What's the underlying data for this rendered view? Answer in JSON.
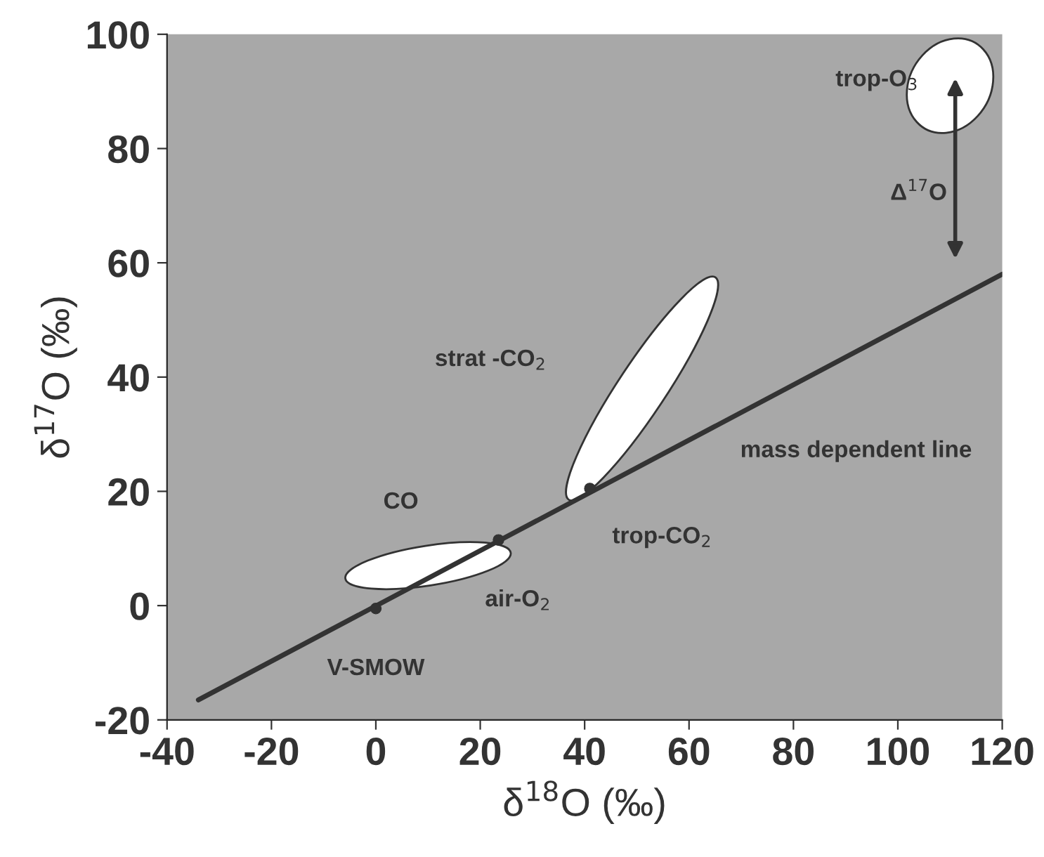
{
  "chart_data": {
    "type": "scatter",
    "xlabel": "δ$^{18}$O (‰)",
    "ylabel": "δ$^{17}$O (‰)",
    "series": [
      {
        "type": "line",
        "color": "#333333",
        "x": [
          -34,
          120
        ],
        "values": [
          -16.5,
          58
        ],
        "marker": "none"
      },
      {
        "color": "#333333",
        "x": [
          0,
          23.5,
          41
        ],
        "values": [
          -0.5,
          11.5,
          20.5
        ],
        "marker": "circle"
      }
    ],
    "annotations": [
      {
        "text": "V-SMOW",
        "x": 0,
        "y": -0.5
      },
      {
        "text": "air-O$_{2}$",
        "x": 23.5,
        "y": 11.5
      },
      {
        "text": "trop-CO$_{2}$",
        "x": 41,
        "y": 20.5
      },
      "CO",
      "strat -CO$_{2}$",
      "mass dependent line",
      "trop-O$_{3}$",
      "Δ$^{17}$O"
    ],
    "xlim": [
      -40,
      120
    ],
    "xticks": [
      -40,
      -20,
      0,
      20,
      40,
      60,
      80,
      100,
      120
    ],
    "ylim": [
      -20,
      100
    ],
    "yticks": [
      -20,
      0,
      20,
      40,
      60,
      80,
      100
    ],
    "grid": false,
    "legend": false
  }
}
